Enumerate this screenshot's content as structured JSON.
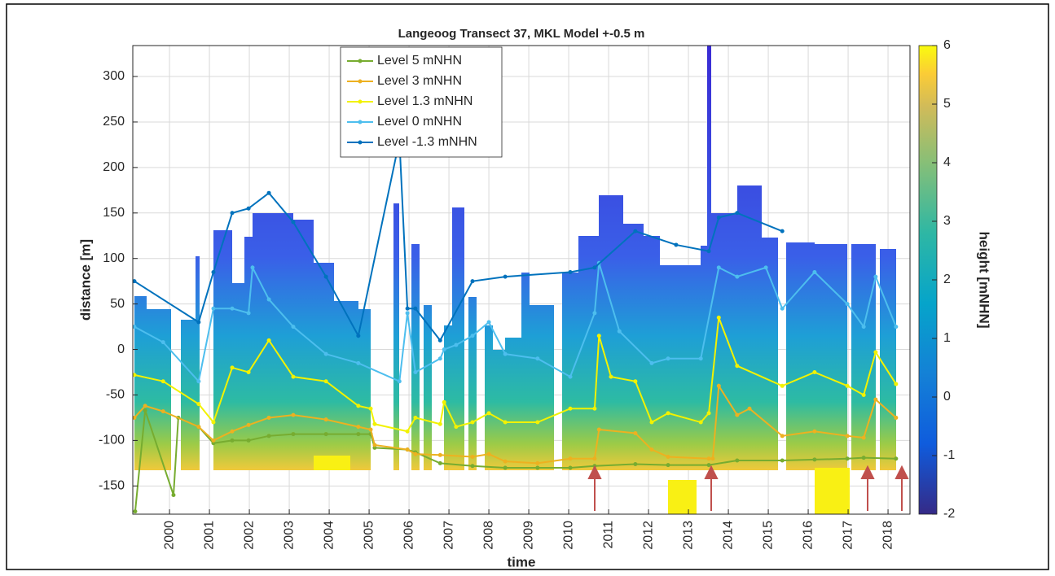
{
  "chart_data": {
    "type": "line",
    "title": "Langeoog Transect 37, MKL Model +-0.5 m",
    "xlabel": "time",
    "ylabel": "distance [m]",
    "xlim": [
      1999.08,
      2018.55
    ],
    "xticks": [
      2000,
      2001,
      2002,
      2003,
      2004,
      2005,
      2006,
      2007,
      2008,
      2009,
      2010,
      2011,
      2012,
      2013,
      2014,
      2015,
      2016,
      2017,
      2018
    ],
    "ylim": [
      -181,
      334
    ],
    "yticks": [
      -150,
      -100,
      -50,
      0,
      50,
      100,
      150,
      200,
      250,
      300
    ],
    "grid": true,
    "legend": "north",
    "colorbar": {
      "label": "height [mNHN]",
      "lim": [
        -2,
        6
      ],
      "ticks": [
        -2,
        -1,
        0,
        1,
        2,
        3,
        4,
        5,
        6
      ]
    },
    "series": [
      {
        "name": "Level 5 mNHN",
        "color": "#77ac30",
        "x": [
          1999.14,
          1999.39,
          2000.1,
          2000.22,
          2000.73,
          2001.1,
          2001.57,
          2001.98,
          2002.49,
          2003.1,
          2003.92,
          2004.73,
          2005.04,
          2005.14,
          2005.96,
          2006.16,
          2006.78,
          2007.59,
          2008.41,
          2009.22,
          2010.04,
          2010.65,
          2011.67,
          2012.49,
          2013.51,
          2014.22,
          2015.35,
          2016.16,
          2016.98,
          2017.39,
          2018.2
        ],
        "values": [
          -178,
          -67,
          -160,
          -75,
          -85,
          -103,
          -100,
          -100,
          -95,
          -93,
          -93,
          -93,
          -93,
          -108,
          -110,
          -113,
          -125,
          -128,
          -130,
          -130,
          -130,
          -128,
          -126,
          -127,
          -127,
          -122,
          -122,
          -121,
          -120,
          -119,
          -120
        ]
      },
      {
        "name": "Level 3 mNHN",
        "color": "#edb120",
        "x": [
          1999.12,
          1999.39,
          1999.84,
          2000.73,
          2001.1,
          2001.57,
          2001.98,
          2002.49,
          2003.1,
          2003.92,
          2004.73,
          2005.04,
          2005.14,
          2005.96,
          2006.16,
          2006.78,
          2007.59,
          2008.0,
          2008.41,
          2009.22,
          2010.04,
          2010.65,
          2010.76,
          2011.67,
          2012.08,
          2012.49,
          2013.51,
          2013.61,
          2013.76,
          2014.22,
          2014.53,
          2015.35,
          2016.16,
          2016.98,
          2017.39,
          2017.69,
          2018.2
        ],
        "values": [
          -75,
          -62,
          -68,
          -85,
          -100,
          -90,
          -83,
          -75,
          -72,
          -77,
          -85,
          -88,
          -105,
          -110,
          -115,
          -116,
          -118,
          -115,
          -123,
          -125,
          -120,
          -120,
          -88,
          -92,
          -110,
          -118,
          -120,
          -120,
          -40,
          -72,
          -65,
          -95,
          -90,
          -95,
          -97,
          -55,
          -75
        ]
      },
      {
        "name": "Level 1.3 mNHN",
        "color": "#f2f200",
        "x": [
          1999.12,
          1999.84,
          2000.73,
          2001.1,
          2001.57,
          2001.98,
          2002.49,
          2003.1,
          2003.92,
          2004.73,
          2005.04,
          2005.14,
          2005.96,
          2006.16,
          2006.78,
          2006.88,
          2007.18,
          2007.59,
          2008.0,
          2008.41,
          2009.22,
          2010.04,
          2010.65,
          2010.76,
          2011.06,
          2011.67,
          2012.08,
          2012.49,
          2013.31,
          2013.51,
          2013.76,
          2014.22,
          2015.35,
          2016.16,
          2016.98,
          2017.39,
          2017.69,
          2018.2
        ],
        "values": [
          -28,
          -35,
          -60,
          -80,
          -20,
          -25,
          10,
          -30,
          -35,
          -62,
          -65,
          -82,
          -90,
          -75,
          -82,
          -58,
          -85,
          -80,
          -70,
          -80,
          -80,
          -65,
          -65,
          15,
          -30,
          -35,
          -80,
          -70,
          -80,
          -70,
          35,
          -18,
          -40,
          -25,
          -40,
          -50,
          -3,
          -38
        ]
      },
      {
        "name": "Level 0 mNHN",
        "color": "#4dbeee",
        "x": [
          1999.12,
          1999.84,
          2000.73,
          2001.1,
          2001.57,
          2001.98,
          2002.08,
          2002.49,
          2003.1,
          2003.92,
          2004.73,
          2005.76,
          2005.96,
          2006.16,
          2006.78,
          2006.88,
          2007.18,
          2007.59,
          2008.0,
          2008.41,
          2009.22,
          2010.04,
          2010.65,
          2010.76,
          2011.27,
          2012.08,
          2012.49,
          2013.31,
          2013.76,
          2014.22,
          2014.94,
          2015.35,
          2016.16,
          2016.98,
          2017.39,
          2017.69,
          2018.2
        ],
        "values": [
          25,
          8,
          -35,
          45,
          45,
          40,
          90,
          55,
          25,
          -5,
          -15,
          -35,
          40,
          -25,
          -10,
          0,
          5,
          15,
          30,
          -5,
          -10,
          -30,
          40,
          95,
          20,
          -15,
          -10,
          -10,
          90,
          80,
          90,
          45,
          85,
          50,
          25,
          80,
          25
        ]
      },
      {
        "name": "Level -1.3 mNHN",
        "color": "#0072bd",
        "x": [
          1999.12,
          2000.73,
          2001.1,
          2001.57,
          2001.98,
          2002.49,
          2003.1,
          2003.92,
          2004.73,
          2005.76,
          2005.96,
          2006.16,
          2006.78,
          2007.59,
          2008.41,
          2010.04,
          2010.65,
          2011.67,
          2012.69,
          2013.51,
          2013.76,
          2014.22,
          2015.35
        ],
        "values": [
          75,
          30,
          85,
          150,
          155,
          172,
          140,
          80,
          15,
          230,
          45,
          45,
          10,
          75,
          80,
          85,
          90,
          130,
          115,
          108,
          145,
          150,
          130
        ]
      }
    ]
  }
}
